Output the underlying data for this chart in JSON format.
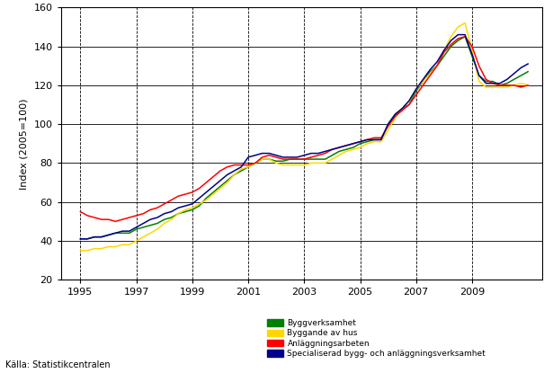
{
  "title": "",
  "ylabel": "Index (2005=100)",
  "xlabel": "",
  "source_text": "Källa: Statistikcentralen",
  "ylim": [
    20,
    160
  ],
  "yticks": [
    20,
    40,
    60,
    80,
    100,
    120,
    140,
    160
  ],
  "xticks": [
    1995,
    1997,
    1999,
    2001,
    2003,
    2005,
    2007,
    2009
  ],
  "xlim": [
    1994.3,
    2011.5
  ],
  "legend_labels": [
    "Byggverksamhet",
    "Byggande av hus",
    "Anläggningsarbeten",
    "Specialiserad bygg- och anläggningsverksamhet"
  ],
  "colors": [
    "#008000",
    "#FFD700",
    "#FF0000",
    "#00008B"
  ],
  "linewidth": 1.1,
  "series": {
    "green": [
      [
        1995.0,
        41
      ],
      [
        1995.25,
        41
      ],
      [
        1995.5,
        42
      ],
      [
        1995.75,
        42
      ],
      [
        1996.0,
        43
      ],
      [
        1996.25,
        44
      ],
      [
        1996.5,
        44
      ],
      [
        1996.75,
        44
      ],
      [
        1997.0,
        46
      ],
      [
        1997.25,
        47
      ],
      [
        1997.5,
        48
      ],
      [
        1997.75,
        49
      ],
      [
        1998.0,
        51
      ],
      [
        1998.25,
        52
      ],
      [
        1998.5,
        54
      ],
      [
        1998.75,
        55
      ],
      [
        1999.0,
        56
      ],
      [
        1999.25,
        58
      ],
      [
        1999.5,
        62
      ],
      [
        1999.75,
        65
      ],
      [
        2000.0,
        68
      ],
      [
        2000.25,
        71
      ],
      [
        2000.5,
        74
      ],
      [
        2000.75,
        76
      ],
      [
        2001.0,
        78
      ],
      [
        2001.25,
        80
      ],
      [
        2001.5,
        82
      ],
      [
        2001.75,
        82
      ],
      [
        2002.0,
        81
      ],
      [
        2002.25,
        81
      ],
      [
        2002.5,
        82
      ],
      [
        2002.75,
        82
      ],
      [
        2003.0,
        82
      ],
      [
        2003.25,
        82
      ],
      [
        2003.5,
        82
      ],
      [
        2003.75,
        82
      ],
      [
        2004.0,
        84
      ],
      [
        2004.25,
        86
      ],
      [
        2004.5,
        87
      ],
      [
        2004.75,
        88
      ],
      [
        2005.0,
        90
      ],
      [
        2005.25,
        91
      ],
      [
        2005.5,
        92
      ],
      [
        2005.75,
        92
      ],
      [
        2006.0,
        100
      ],
      [
        2006.25,
        105
      ],
      [
        2006.5,
        108
      ],
      [
        2006.75,
        110
      ],
      [
        2007.0,
        117
      ],
      [
        2007.25,
        122
      ],
      [
        2007.5,
        127
      ],
      [
        2007.75,
        130
      ],
      [
        2008.0,
        135
      ],
      [
        2008.25,
        140
      ],
      [
        2008.5,
        143
      ],
      [
        2008.75,
        145
      ],
      [
        2009.0,
        135
      ],
      [
        2009.25,
        125
      ],
      [
        2009.5,
        122
      ],
      [
        2009.75,
        122
      ],
      [
        2010.0,
        120
      ],
      [
        2010.25,
        121
      ],
      [
        2010.5,
        123
      ],
      [
        2010.75,
        125
      ],
      [
        2011.0,
        127
      ]
    ],
    "yellow": [
      [
        1995.0,
        35
      ],
      [
        1995.25,
        35
      ],
      [
        1995.5,
        36
      ],
      [
        1995.75,
        36
      ],
      [
        1996.0,
        37
      ],
      [
        1996.25,
        37
      ],
      [
        1996.5,
        38
      ],
      [
        1996.75,
        38
      ],
      [
        1997.0,
        40
      ],
      [
        1997.25,
        42
      ],
      [
        1997.5,
        44
      ],
      [
        1997.75,
        46
      ],
      [
        1998.0,
        49
      ],
      [
        1998.25,
        51
      ],
      [
        1998.5,
        54
      ],
      [
        1998.75,
        56
      ],
      [
        1999.0,
        57
      ],
      [
        1999.25,
        59
      ],
      [
        1999.5,
        61
      ],
      [
        1999.75,
        64
      ],
      [
        2000.0,
        67
      ],
      [
        2000.25,
        70
      ],
      [
        2000.5,
        74
      ],
      [
        2000.75,
        77
      ],
      [
        2001.0,
        78
      ],
      [
        2001.25,
        80
      ],
      [
        2001.5,
        82
      ],
      [
        2001.75,
        82
      ],
      [
        2002.0,
        80
      ],
      [
        2002.25,
        79
      ],
      [
        2002.5,
        79
      ],
      [
        2002.75,
        79
      ],
      [
        2003.0,
        79
      ],
      [
        2003.25,
        80
      ],
      [
        2003.5,
        80
      ],
      [
        2003.75,
        80
      ],
      [
        2004.0,
        82
      ],
      [
        2004.25,
        84
      ],
      [
        2004.5,
        86
      ],
      [
        2004.75,
        87
      ],
      [
        2005.0,
        88
      ],
      [
        2005.25,
        90
      ],
      [
        2005.5,
        91
      ],
      [
        2005.75,
        91
      ],
      [
        2006.0,
        97
      ],
      [
        2006.25,
        103
      ],
      [
        2006.5,
        108
      ],
      [
        2006.75,
        112
      ],
      [
        2007.0,
        118
      ],
      [
        2007.25,
        122
      ],
      [
        2007.5,
        126
      ],
      [
        2007.75,
        130
      ],
      [
        2008.0,
        138
      ],
      [
        2008.25,
        145
      ],
      [
        2008.5,
        150
      ],
      [
        2008.75,
        152
      ],
      [
        2009.0,
        138
      ],
      [
        2009.25,
        122
      ],
      [
        2009.5,
        119
      ],
      [
        2009.75,
        119
      ],
      [
        2010.0,
        119
      ],
      [
        2010.25,
        119
      ],
      [
        2010.5,
        120
      ],
      [
        2010.75,
        121
      ],
      [
        2011.0,
        120
      ]
    ],
    "red": [
      [
        1995.0,
        55
      ],
      [
        1995.25,
        53
      ],
      [
        1995.5,
        52
      ],
      [
        1995.75,
        51
      ],
      [
        1996.0,
        51
      ],
      [
        1996.25,
        50
      ],
      [
        1996.5,
        51
      ],
      [
        1996.75,
        52
      ],
      [
        1997.0,
        53
      ],
      [
        1997.25,
        54
      ],
      [
        1997.5,
        56
      ],
      [
        1997.75,
        57
      ],
      [
        1998.0,
        59
      ],
      [
        1998.25,
        61
      ],
      [
        1998.5,
        63
      ],
      [
        1998.75,
        64
      ],
      [
        1999.0,
        65
      ],
      [
        1999.25,
        67
      ],
      [
        1999.5,
        70
      ],
      [
        1999.75,
        73
      ],
      [
        2000.0,
        76
      ],
      [
        2000.25,
        78
      ],
      [
        2000.5,
        79
      ],
      [
        2000.75,
        79
      ],
      [
        2001.0,
        79
      ],
      [
        2001.25,
        80
      ],
      [
        2001.5,
        83
      ],
      [
        2001.75,
        84
      ],
      [
        2002.0,
        83
      ],
      [
        2002.25,
        82
      ],
      [
        2002.5,
        82
      ],
      [
        2002.75,
        82
      ],
      [
        2003.0,
        82
      ],
      [
        2003.25,
        83
      ],
      [
        2003.5,
        84
      ],
      [
        2003.75,
        85
      ],
      [
        2004.0,
        87
      ],
      [
        2004.25,
        88
      ],
      [
        2004.5,
        89
      ],
      [
        2004.75,
        90
      ],
      [
        2005.0,
        91
      ],
      [
        2005.25,
        92
      ],
      [
        2005.5,
        93
      ],
      [
        2005.75,
        93
      ],
      [
        2006.0,
        99
      ],
      [
        2006.25,
        104
      ],
      [
        2006.5,
        107
      ],
      [
        2006.75,
        110
      ],
      [
        2007.0,
        115
      ],
      [
        2007.25,
        120
      ],
      [
        2007.5,
        125
      ],
      [
        2007.75,
        130
      ],
      [
        2008.0,
        137
      ],
      [
        2008.25,
        141
      ],
      [
        2008.5,
        144
      ],
      [
        2008.75,
        145
      ],
      [
        2009.0,
        140
      ],
      [
        2009.25,
        130
      ],
      [
        2009.5,
        123
      ],
      [
        2009.75,
        121
      ],
      [
        2010.0,
        120
      ],
      [
        2010.25,
        120
      ],
      [
        2010.5,
        120
      ],
      [
        2010.75,
        119
      ],
      [
        2011.0,
        120
      ]
    ],
    "blue": [
      [
        1995.0,
        41
      ],
      [
        1995.25,
        41
      ],
      [
        1995.5,
        42
      ],
      [
        1995.75,
        42
      ],
      [
        1996.0,
        43
      ],
      [
        1996.25,
        44
      ],
      [
        1996.5,
        45
      ],
      [
        1996.75,
        45
      ],
      [
        1997.0,
        47
      ],
      [
        1997.25,
        49
      ],
      [
        1997.5,
        51
      ],
      [
        1997.75,
        52
      ],
      [
        1998.0,
        54
      ],
      [
        1998.25,
        55
      ],
      [
        1998.5,
        57
      ],
      [
        1998.75,
        58
      ],
      [
        1999.0,
        59
      ],
      [
        1999.25,
        62
      ],
      [
        1999.5,
        65
      ],
      [
        1999.75,
        68
      ],
      [
        2000.0,
        71
      ],
      [
        2000.25,
        74
      ],
      [
        2000.5,
        76
      ],
      [
        2000.75,
        78
      ],
      [
        2001.0,
        83
      ],
      [
        2001.25,
        84
      ],
      [
        2001.5,
        85
      ],
      [
        2001.75,
        85
      ],
      [
        2002.0,
        84
      ],
      [
        2002.25,
        83
      ],
      [
        2002.5,
        83
      ],
      [
        2002.75,
        83
      ],
      [
        2003.0,
        84
      ],
      [
        2003.25,
        85
      ],
      [
        2003.5,
        85
      ],
      [
        2003.75,
        86
      ],
      [
        2004.0,
        87
      ],
      [
        2004.25,
        88
      ],
      [
        2004.5,
        89
      ],
      [
        2004.75,
        90
      ],
      [
        2005.0,
        91
      ],
      [
        2005.25,
        92
      ],
      [
        2005.5,
        92
      ],
      [
        2005.75,
        92
      ],
      [
        2006.0,
        100
      ],
      [
        2006.25,
        105
      ],
      [
        2006.5,
        108
      ],
      [
        2006.75,
        112
      ],
      [
        2007.0,
        118
      ],
      [
        2007.25,
        123
      ],
      [
        2007.5,
        128
      ],
      [
        2007.75,
        132
      ],
      [
        2008.0,
        138
      ],
      [
        2008.25,
        143
      ],
      [
        2008.5,
        146
      ],
      [
        2008.75,
        146
      ],
      [
        2009.0,
        136
      ],
      [
        2009.25,
        125
      ],
      [
        2009.5,
        121
      ],
      [
        2009.75,
        121
      ],
      [
        2010.0,
        121
      ],
      [
        2010.25,
        123
      ],
      [
        2010.5,
        126
      ],
      [
        2010.75,
        129
      ],
      [
        2011.0,
        131
      ]
    ]
  }
}
